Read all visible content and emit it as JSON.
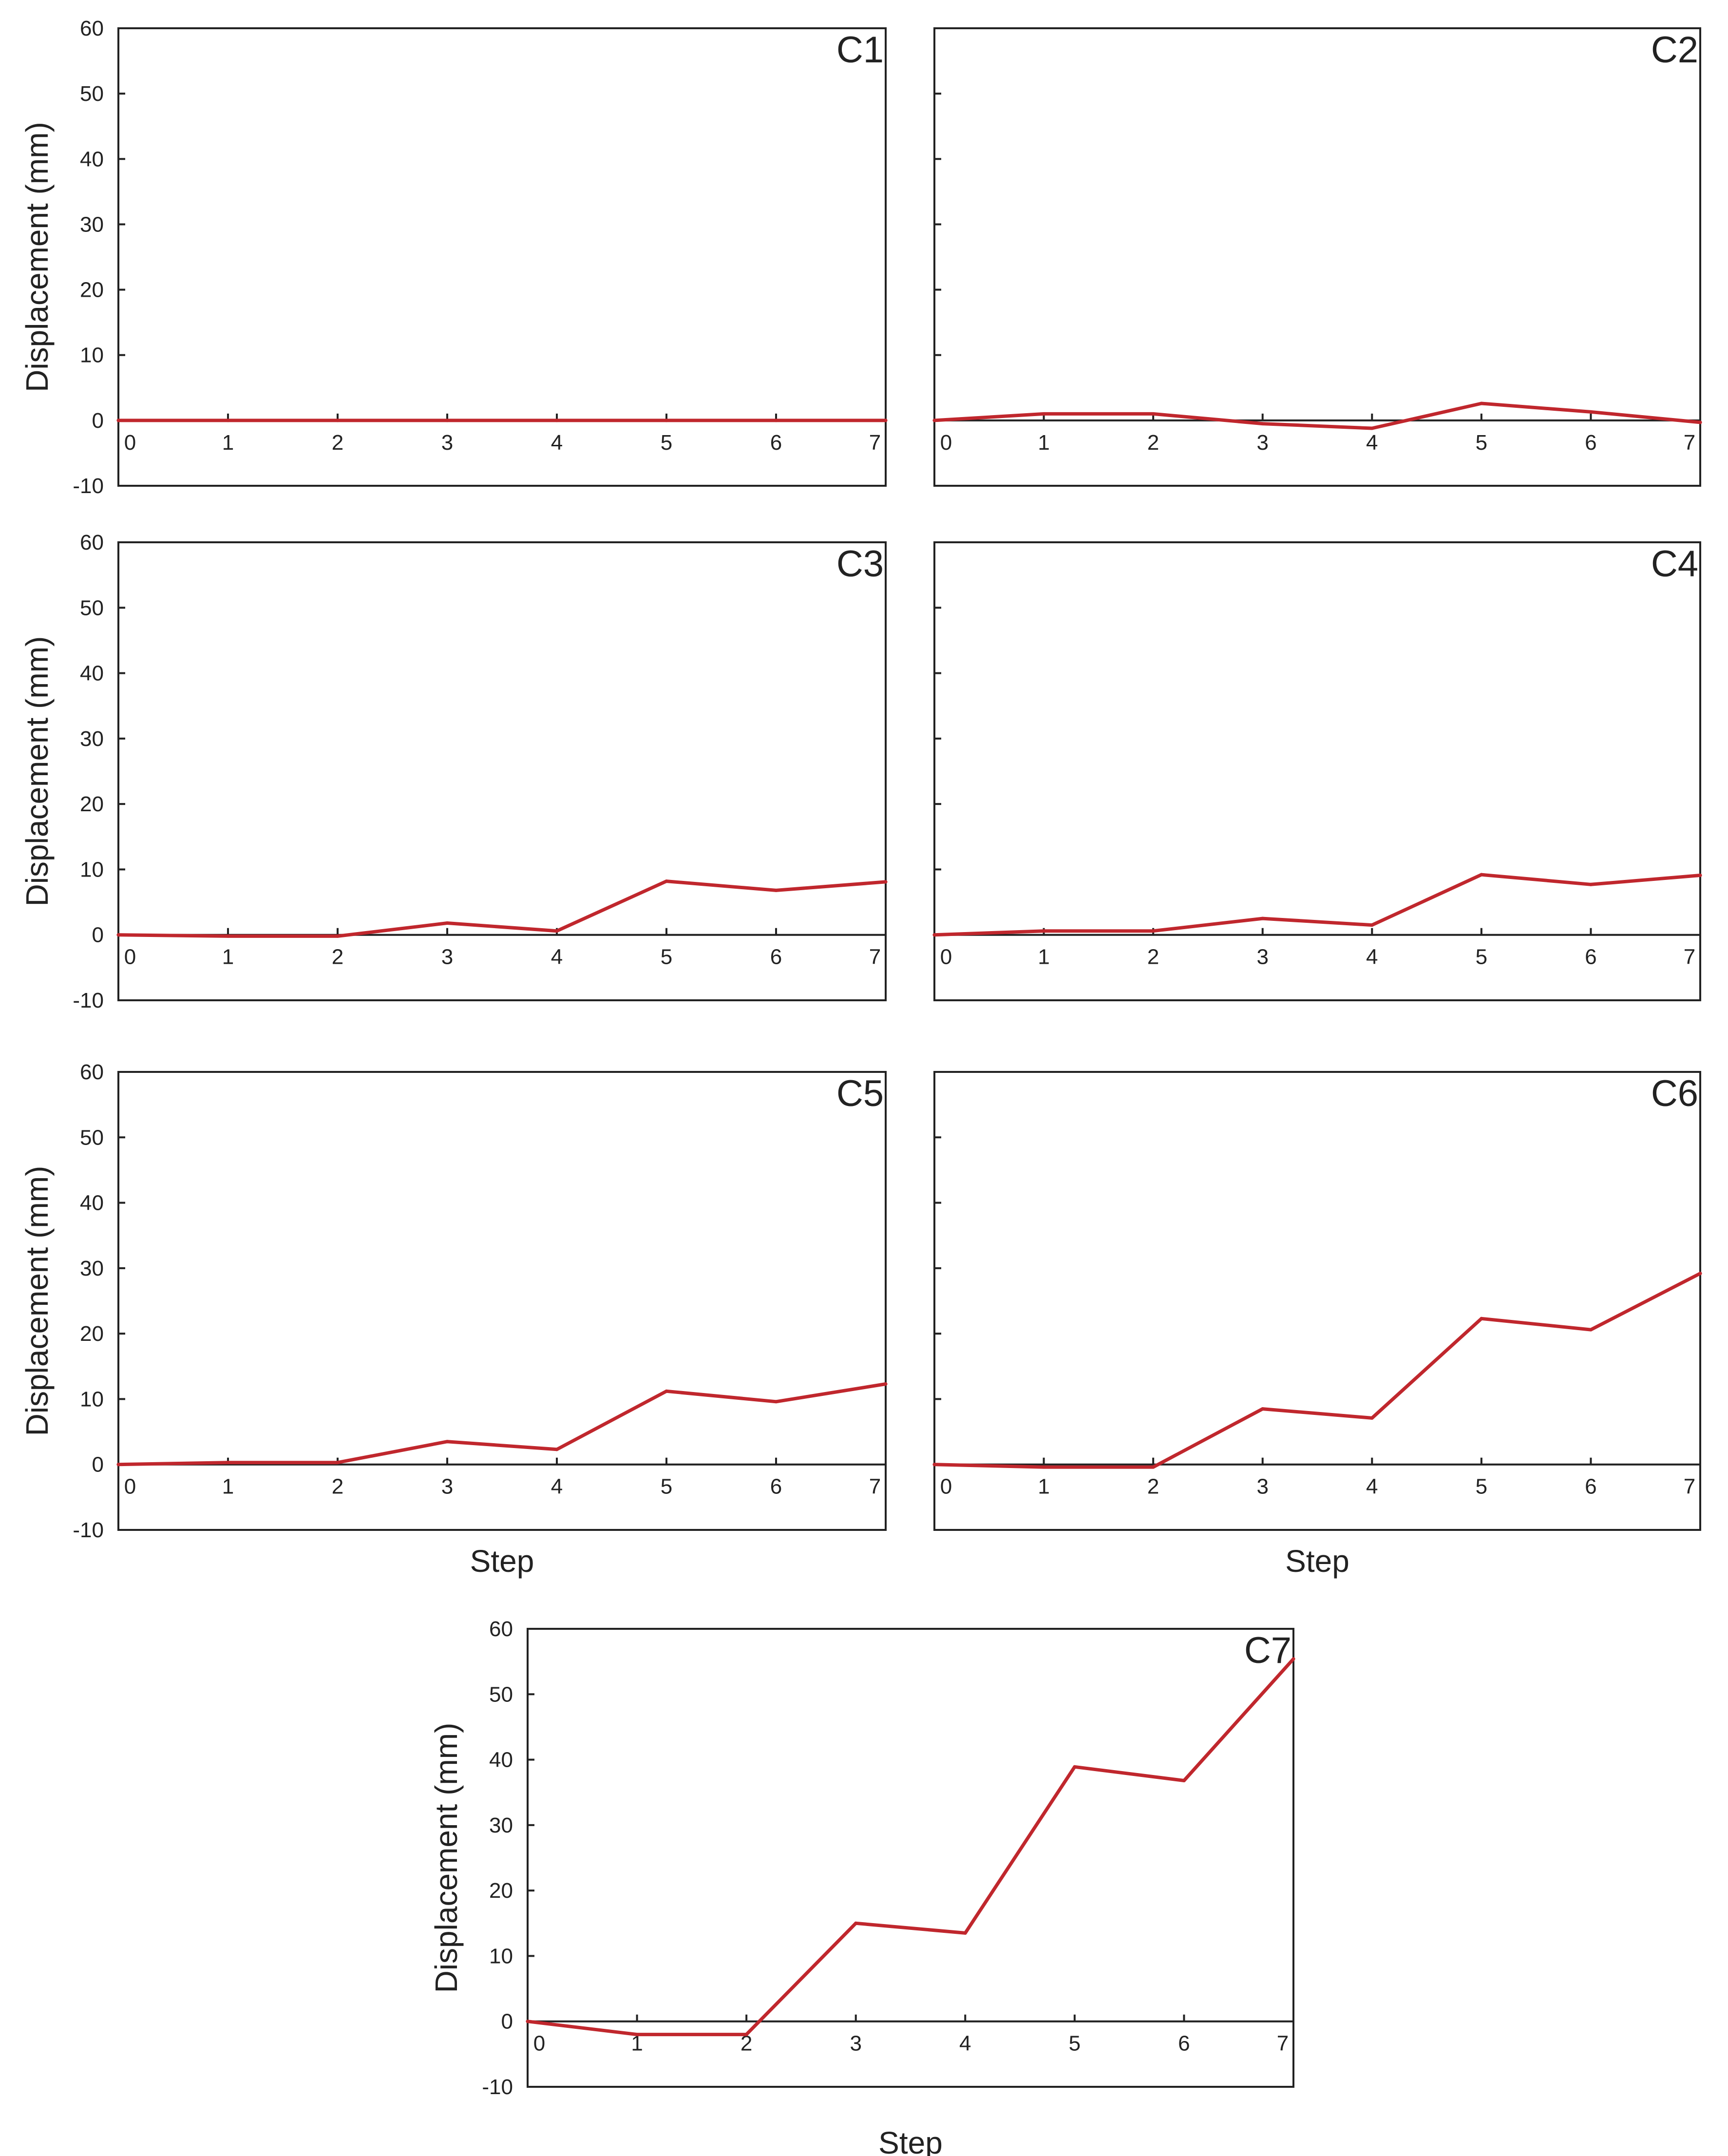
{
  "figure": {
    "x_axis_title": "Step",
    "y_axis_title": "Displacement (mm)",
    "line_color": "#c0272d",
    "axis_color": "#222222"
  },
  "chart_data": [
    {
      "type": "line",
      "panel": "C1",
      "title": "C1",
      "xlabel": "",
      "ylabel": "Displacement (mm)",
      "x": [
        0,
        1,
        2,
        3,
        4,
        5,
        6,
        7
      ],
      "values": [
        0,
        0,
        0,
        0,
        0,
        0,
        0,
        0
      ],
      "xlim": [
        0,
        7
      ],
      "ylim": [
        -10,
        60
      ],
      "x_ticks": [
        "0",
        "1",
        "2",
        "3",
        "4",
        "5",
        "6",
        "7"
      ],
      "y_ticks": [
        "60",
        "50",
        "40",
        "30",
        "20",
        "10",
        "0",
        "-10"
      ],
      "show_y_tick_labels": true,
      "grid": false
    },
    {
      "type": "line",
      "panel": "C2",
      "title": "C2",
      "xlabel": "",
      "ylabel": "",
      "x": [
        0,
        1,
        2,
        3,
        4,
        5,
        6,
        7
      ],
      "values": [
        0,
        1,
        1,
        -0.5,
        -1.2,
        2.6,
        1.3,
        -0.3
      ],
      "xlim": [
        0,
        7
      ],
      "ylim": [
        -10,
        60
      ],
      "x_ticks": [
        "0",
        "1",
        "2",
        "3",
        "4",
        "5",
        "6",
        "7"
      ],
      "y_ticks": [
        "60",
        "50",
        "40",
        "30",
        "20",
        "10",
        "0",
        "-10"
      ],
      "show_y_tick_labels": false,
      "grid": false
    },
    {
      "type": "line",
      "panel": "C3",
      "title": "C3",
      "xlabel": "",
      "ylabel": "Displacement (mm)",
      "x": [
        0,
        1,
        2,
        3,
        4,
        5,
        6,
        7
      ],
      "values": [
        0,
        -0.2,
        -0.2,
        1.8,
        0.6,
        8.2,
        6.8,
        8.1
      ],
      "xlim": [
        0,
        7
      ],
      "ylim": [
        -10,
        60
      ],
      "x_ticks": [
        "0",
        "1",
        "2",
        "3",
        "4",
        "5",
        "6",
        "7"
      ],
      "y_ticks": [
        "60",
        "50",
        "40",
        "30",
        "20",
        "10",
        "0",
        "-10"
      ],
      "show_y_tick_labels": true,
      "grid": false
    },
    {
      "type": "line",
      "panel": "C4",
      "title": "C4",
      "xlabel": "",
      "ylabel": "",
      "x": [
        0,
        1,
        2,
        3,
        4,
        5,
        6,
        7
      ],
      "values": [
        0,
        0.6,
        0.6,
        2.5,
        1.5,
        9.2,
        7.7,
        9.1
      ],
      "xlim": [
        0,
        7
      ],
      "ylim": [
        -10,
        60
      ],
      "x_ticks": [
        "0",
        "1",
        "2",
        "3",
        "4",
        "5",
        "6",
        "7"
      ],
      "y_ticks": [
        "60",
        "50",
        "40",
        "30",
        "20",
        "10",
        "0",
        "-10"
      ],
      "show_y_tick_labels": false,
      "grid": false
    },
    {
      "type": "line",
      "panel": "C5",
      "title": "C5",
      "xlabel": "Step",
      "ylabel": "Displacement (mm)",
      "x": [
        0,
        1,
        2,
        3,
        4,
        5,
        6,
        7
      ],
      "values": [
        0,
        0.3,
        0.3,
        3.5,
        2.3,
        11.2,
        9.6,
        12.3
      ],
      "xlim": [
        0,
        7
      ],
      "ylim": [
        -10,
        60
      ],
      "x_ticks": [
        "0",
        "1",
        "2",
        "3",
        "4",
        "5",
        "6",
        "7"
      ],
      "y_ticks": [
        "60",
        "50",
        "40",
        "30",
        "20",
        "10",
        "0",
        "-10"
      ],
      "show_y_tick_labels": true,
      "grid": false
    },
    {
      "type": "line",
      "panel": "C6",
      "title": "C6",
      "xlabel": "Step",
      "ylabel": "",
      "x": [
        0,
        1,
        2,
        3,
        4,
        5,
        6,
        7
      ],
      "values": [
        0,
        -0.4,
        -0.4,
        8.5,
        7.1,
        22.3,
        20.6,
        29.2
      ],
      "xlim": [
        0,
        7
      ],
      "ylim": [
        -10,
        60
      ],
      "x_ticks": [
        "0",
        "1",
        "2",
        "3",
        "4",
        "5",
        "6",
        "7"
      ],
      "y_ticks": [
        "60",
        "50",
        "40",
        "30",
        "20",
        "10",
        "0",
        "-10"
      ],
      "show_y_tick_labels": false,
      "grid": false
    },
    {
      "type": "line",
      "panel": "C7",
      "title": "C7",
      "xlabel": "Step",
      "ylabel": "Displacement (mm)",
      "x": [
        0,
        1,
        2,
        3,
        4,
        5,
        6,
        7
      ],
      "values": [
        0,
        -2,
        -2,
        15,
        13.5,
        38.9,
        36.8,
        55.4
      ],
      "xlim": [
        0,
        7
      ],
      "ylim": [
        -10,
        60
      ],
      "x_ticks": [
        "0",
        "1",
        "2",
        "3",
        "4",
        "5",
        "6",
        "7"
      ],
      "y_ticks": [
        "60",
        "50",
        "40",
        "30",
        "20",
        "10",
        "0",
        "-10"
      ],
      "show_y_tick_labels": true,
      "grid": false
    }
  ]
}
